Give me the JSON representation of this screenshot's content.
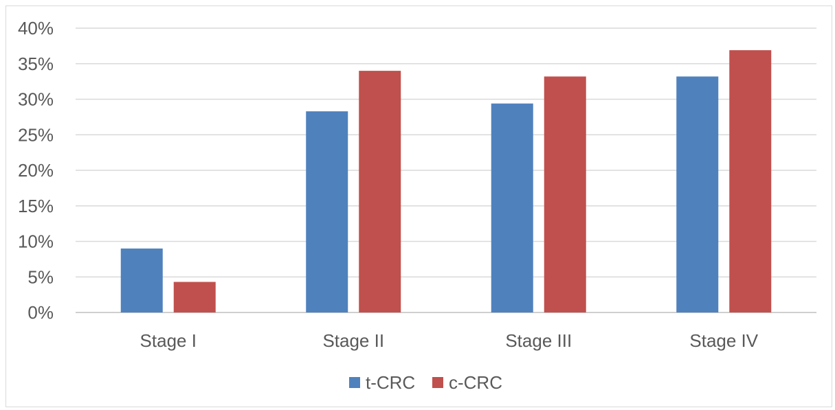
{
  "chart_data": {
    "type": "bar",
    "categories": [
      "Stage I",
      "Stage II",
      "Stage III",
      "Stage IV"
    ],
    "series": [
      {
        "name": "t-CRC",
        "color": "#4f81bd",
        "values": [
          9,
          28.3,
          29.4,
          33.2
        ]
      },
      {
        "name": "c-CRC",
        "color": "#c0504d",
        "values": [
          4.3,
          34.0,
          33.2,
          36.9
        ]
      }
    ],
    "ylim": [
      0,
      40
    ],
    "yticks": [
      0,
      5,
      10,
      15,
      20,
      25,
      30,
      35,
      40
    ],
    "ytick_labels": [
      "0%",
      "5%",
      "10%",
      "15%",
      "20%",
      "25%",
      "30%",
      "35%",
      "40%"
    ],
    "grid": true,
    "legend_position": "bottom"
  }
}
